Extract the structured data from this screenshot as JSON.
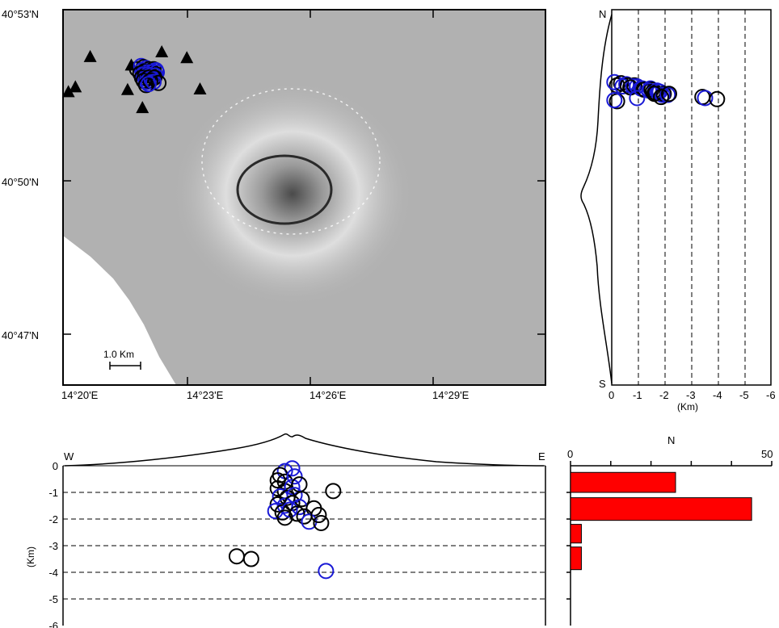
{
  "map": {
    "lat_labels": [
      "40°53'N",
      "40°50'N",
      "40°47'N"
    ],
    "lon_labels": [
      "14°20'E",
      "14°23'E",
      "14°26'E",
      "14°29'E"
    ],
    "scale_label": "1.0 Km",
    "stations": [
      {
        "lon": 14.45,
        "lat": 40.844
      },
      {
        "lon": 14.363,
        "lat": 40.8395
      },
      {
        "lon": 14.4805,
        "lat": 40.8385
      },
      {
        "lon": 14.413,
        "lat": 40.8315
      },
      {
        "lon": 14.345,
        "lat": 40.811
      },
      {
        "lon": 14.4085,
        "lat": 40.8085
      },
      {
        "lon": 14.4965,
        "lat": 40.809
      },
      {
        "lon": 14.3365,
        "lat": 40.8065
      },
      {
        "lon": 14.4265,
        "lat": 40.7915
      }
    ],
    "events": [
      {
        "lon": 14.42,
        "lat": 40.8275,
        "c": "k"
      },
      {
        "lon": 14.425,
        "lat": 40.8305,
        "c": "b"
      },
      {
        "lon": 14.428,
        "lat": 40.8295,
        "c": "k"
      },
      {
        "lon": 14.431,
        "lat": 40.8285,
        "c": "b"
      },
      {
        "lon": 14.434,
        "lat": 40.8275,
        "c": "k"
      },
      {
        "lon": 14.437,
        "lat": 40.8265,
        "c": "b"
      },
      {
        "lon": 14.44,
        "lat": 40.8275,
        "c": "k"
      },
      {
        "lon": 14.443,
        "lat": 40.8265,
        "c": "b"
      },
      {
        "lon": 14.426,
        "lat": 40.8265,
        "c": "b"
      },
      {
        "lon": 14.429,
        "lat": 40.8255,
        "c": "k"
      },
      {
        "lon": 14.432,
        "lat": 40.8245,
        "c": "b"
      },
      {
        "lon": 14.435,
        "lat": 40.8235,
        "c": "k"
      },
      {
        "lon": 14.438,
        "lat": 40.8245,
        "c": "b"
      },
      {
        "lon": 14.441,
        "lat": 40.8235,
        "c": "k"
      },
      {
        "lon": 14.444,
        "lat": 40.8245,
        "c": "b"
      },
      {
        "lon": 14.424,
        "lat": 40.8235,
        "c": "k"
      },
      {
        "lon": 14.427,
        "lat": 40.8225,
        "c": "b"
      },
      {
        "lon": 14.43,
        "lat": 40.8215,
        "c": "k"
      },
      {
        "lon": 14.433,
        "lat": 40.8225,
        "c": "b"
      },
      {
        "lon": 14.436,
        "lat": 40.8215,
        "c": "b"
      },
      {
        "lon": 14.439,
        "lat": 40.8205,
        "c": "k"
      },
      {
        "lon": 14.442,
        "lat": 40.8215,
        "c": "b"
      },
      {
        "lon": 14.426,
        "lat": 40.8195,
        "c": "k"
      },
      {
        "lon": 14.43,
        "lat": 40.8185,
        "c": "b"
      },
      {
        "lon": 14.434,
        "lat": 40.8195,
        "c": "k"
      },
      {
        "lon": 14.437,
        "lat": 40.8185,
        "c": "b"
      },
      {
        "lon": 14.441,
        "lat": 40.8195,
        "c": "k"
      },
      {
        "lon": 14.428,
        "lat": 40.8165,
        "c": "k"
      },
      {
        "lon": 14.432,
        "lat": 40.8155,
        "c": "b"
      },
      {
        "lon": 14.436,
        "lat": 40.8165,
        "c": "k"
      },
      {
        "lon": 14.44,
        "lat": 40.8155,
        "c": "b"
      },
      {
        "lon": 14.446,
        "lat": 40.8145,
        "c": "k"
      },
      {
        "lon": 14.431,
        "lat": 40.8125,
        "c": "k"
      },
      {
        "lon": 14.434,
        "lat": 40.8135,
        "c": "b"
      }
    ]
  },
  "ns_section": {
    "label_top": "N",
    "label_bottom": "S",
    "x_ticks": [
      "0",
      "-1",
      "-2",
      "-3",
      "-4",
      "-5",
      "-6"
    ],
    "x_unit": "(Km)"
  },
  "we_section": {
    "label_left": "W",
    "label_right": "E",
    "y_ticks": [
      "0",
      "-1",
      "-2",
      "-3",
      "-4",
      "-5",
      "-6"
    ],
    "y_unit": "(Km)",
    "events": [
      {
        "x": 0.46,
        "d": -0.2,
        "c": "b"
      },
      {
        "x": 0.475,
        "d": -0.1,
        "c": "b"
      },
      {
        "x": 0.45,
        "d": -0.35,
        "c": "k"
      },
      {
        "x": 0.445,
        "d": -0.55,
        "c": "k"
      },
      {
        "x": 0.46,
        "d": -0.6,
        "c": "k"
      },
      {
        "x": 0.48,
        "d": -0.4,
        "c": "b"
      },
      {
        "x": 0.445,
        "d": -0.85,
        "c": "k"
      },
      {
        "x": 0.46,
        "d": -0.95,
        "c": "k"
      },
      {
        "x": 0.475,
        "d": -0.8,
        "c": "b"
      },
      {
        "x": 0.49,
        "d": -0.7,
        "c": "k"
      },
      {
        "x": 0.45,
        "d": -1.15,
        "c": "b"
      },
      {
        "x": 0.465,
        "d": -1.2,
        "c": "k"
      },
      {
        "x": 0.48,
        "d": -1.1,
        "c": "b"
      },
      {
        "x": 0.495,
        "d": -1.25,
        "c": "k"
      },
      {
        "x": 0.445,
        "d": -1.45,
        "c": "k"
      },
      {
        "x": 0.46,
        "d": -1.5,
        "c": "b"
      },
      {
        "x": 0.475,
        "d": -1.4,
        "c": "k"
      },
      {
        "x": 0.49,
        "d": -1.55,
        "c": "b"
      },
      {
        "x": 0.44,
        "d": -1.7,
        "c": "b"
      },
      {
        "x": 0.455,
        "d": -1.75,
        "c": "k"
      },
      {
        "x": 0.47,
        "d": -1.65,
        "c": "b"
      },
      {
        "x": 0.485,
        "d": -1.8,
        "c": "k"
      },
      {
        "x": 0.46,
        "d": -1.95,
        "c": "k"
      },
      {
        "x": 0.5,
        "d": -1.9,
        "c": "k"
      },
      {
        "x": 0.52,
        "d": -1.6,
        "c": "k"
      },
      {
        "x": 0.51,
        "d": -2.1,
        "c": "b"
      },
      {
        "x": 0.535,
        "d": -2.15,
        "c": "k"
      },
      {
        "x": 0.53,
        "d": -1.85,
        "c": "k"
      },
      {
        "x": 0.56,
        "d": -0.95,
        "c": "k"
      },
      {
        "x": 0.36,
        "d": -3.4,
        "c": "k"
      },
      {
        "x": 0.39,
        "d": -3.5,
        "c": "k"
      },
      {
        "x": 0.545,
        "d": -3.95,
        "c": "b"
      }
    ]
  },
  "histogram": {
    "title": "N",
    "x_ticks": [
      "0",
      "50"
    ],
    "bins": [
      {
        "depth_top": -0.25,
        "depth_bottom": -1.0,
        "count": 29
      },
      {
        "depth_top": -1.2,
        "depth_bottom": -2.05,
        "count": 50
      },
      {
        "depth_top": -2.2,
        "depth_bottom": -2.9,
        "count": 3
      },
      {
        "depth_top": -3.05,
        "depth_bottom": -3.9,
        "count": 3
      }
    ]
  },
  "colors": {
    "event_black": "#000000",
    "event_blue": "#1a1ad6",
    "bar_red": "#ff0000",
    "station": "#000000"
  }
}
